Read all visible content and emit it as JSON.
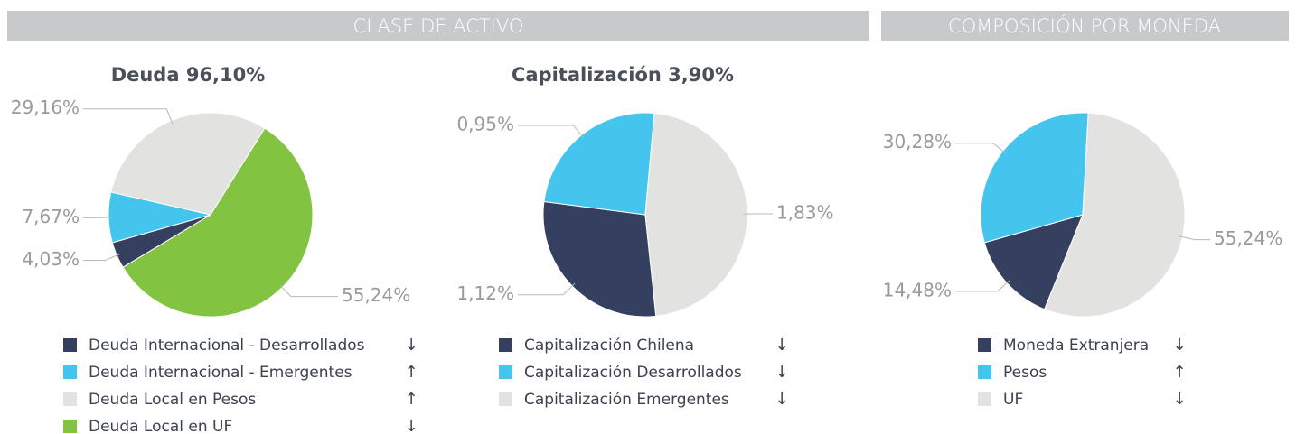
{
  "sections": [
    {
      "title": "CLASE DE ACTIVO"
    },
    {
      "title": "COMPOSICIÓN POR MONEDA"
    }
  ],
  "chart_data": [
    {
      "type": "pie",
      "title": "Deuda 96,10%",
      "categories": [
        "Deuda Internacional - Desarrollados",
        "Deuda Internacional - Emergentes",
        "Deuda Local en Pesos",
        "Deuda Local en UF"
      ],
      "values": [
        4.03,
        7.67,
        29.16,
        55.24
      ],
      "value_labels": [
        "4,03%",
        "7,67%",
        "29,16%",
        "55,24%"
      ],
      "colors": [
        "#353f5f",
        "#44c5ee",
        "#e2e2e0",
        "#82c341"
      ],
      "trends": [
        "↓",
        "↑",
        "↑",
        "↓"
      ]
    },
    {
      "type": "pie",
      "title": "Capitalización 3,90%",
      "categories": [
        "Capitalización Chilena",
        "Capitalización Desarrollados",
        "Capitalización Emergentes"
      ],
      "values": [
        1.12,
        0.95,
        1.83
      ],
      "value_labels": [
        "1,12%",
        "0,95%",
        "1,83%"
      ],
      "colors": [
        "#353f5f",
        "#44c5ee",
        "#e2e2e0"
      ],
      "trends": [
        "↓",
        "↓",
        "↓"
      ]
    },
    {
      "type": "pie",
      "categories": [
        "Moneda Extranjera",
        "Pesos",
        "UF"
      ],
      "values": [
        14.48,
        30.28,
        55.24
      ],
      "value_labels": [
        "14,48%",
        "30,28%",
        "55,24%"
      ],
      "colors": [
        "#353f5f",
        "#44c5ee",
        "#e2e2e0"
      ],
      "trends": [
        "↓",
        "↑",
        "↓"
      ]
    }
  ]
}
